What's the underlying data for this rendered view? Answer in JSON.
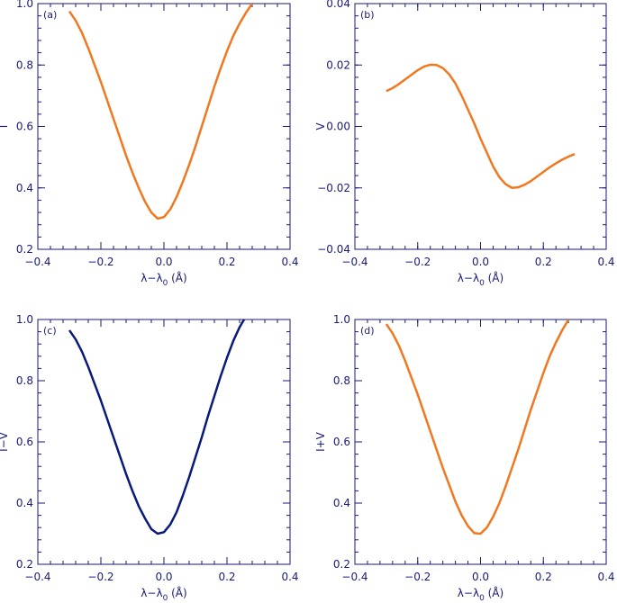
{
  "chart_data": [
    {
      "type": "line",
      "panel_label": "(a)",
      "ylabel": "I",
      "xlabel_main": "λ−λ",
      "xlabel_sub": "0",
      "xlabel_unit": " (Å)",
      "xlim": [
        -0.4,
        0.4
      ],
      "ylim": [
        0.2,
        1.0
      ],
      "xticks": [
        -0.4,
        -0.2,
        0.0,
        0.2,
        0.4
      ],
      "xtick_labels": [
        "−0.4",
        "−0.2",
        "0.0",
        "0.2",
        "0.4"
      ],
      "yticks": [
        0.2,
        0.4,
        0.6,
        0.8,
        1.0
      ],
      "ytick_labels": [
        "0.2",
        "0.4",
        "0.6",
        "0.8",
        "1.0"
      ],
      "color": "#f07820",
      "series": [
        {
          "x": [
            -0.3,
            -0.28,
            -0.26,
            -0.24,
            -0.22,
            -0.2,
            -0.18,
            -0.16,
            -0.14,
            -0.12,
            -0.1,
            -0.08,
            -0.06,
            -0.04,
            -0.02,
            0.0,
            0.02,
            0.04,
            0.06,
            0.08,
            0.1,
            0.12,
            0.14,
            0.16,
            0.18,
            0.2,
            0.22,
            0.24,
            0.26,
            0.28
          ],
          "y": [
            0.975,
            0.945,
            0.905,
            0.855,
            0.8,
            0.745,
            0.685,
            0.625,
            0.565,
            0.505,
            0.45,
            0.4,
            0.355,
            0.32,
            0.3,
            0.305,
            0.33,
            0.37,
            0.42,
            0.475,
            0.535,
            0.6,
            0.665,
            0.73,
            0.79,
            0.845,
            0.895,
            0.935,
            0.97,
            1.0
          ]
        }
      ]
    },
    {
      "type": "line",
      "panel_label": "(b)",
      "ylabel": "V",
      "xlabel_main": "λ−λ",
      "xlabel_sub": "0",
      "xlabel_unit": " (Å)",
      "xlim": [
        -0.4,
        0.4
      ],
      "ylim": [
        -0.04,
        0.04
      ],
      "xticks": [
        -0.4,
        -0.2,
        0.0,
        0.2,
        0.4
      ],
      "xtick_labels": [
        "−0.4",
        "−0.2",
        "0.0",
        "0.2",
        "0.4"
      ],
      "yticks": [
        -0.04,
        -0.02,
        0.0,
        0.02,
        0.04
      ],
      "ytick_labels": [
        "−0.04",
        "−0.02",
        "0.00",
        "0.02",
        "0.04"
      ],
      "color": "#f07820",
      "series": [
        {
          "x": [
            -0.3,
            -0.28,
            -0.26,
            -0.24,
            -0.22,
            -0.2,
            -0.18,
            -0.16,
            -0.14,
            -0.12,
            -0.1,
            -0.08,
            -0.06,
            -0.04,
            -0.02,
            0.0,
            0.02,
            0.04,
            0.06,
            0.08,
            0.1,
            0.12,
            0.14,
            0.16,
            0.18,
            0.2,
            0.22,
            0.24,
            0.26,
            0.28,
            0.3
          ],
          "y": [
            0.0115,
            0.0125,
            0.0138,
            0.0153,
            0.0168,
            0.0183,
            0.0195,
            0.0201,
            0.02,
            0.019,
            0.017,
            0.014,
            0.01,
            0.0055,
            0.001,
            -0.004,
            -0.0085,
            -0.013,
            -0.0165,
            -0.0188,
            -0.02,
            -0.0198,
            -0.019,
            -0.0178,
            -0.0163,
            -0.0148,
            -0.0133,
            -0.012,
            -0.0108,
            -0.0098,
            -0.009
          ]
        }
      ]
    },
    {
      "type": "line",
      "panel_label": "(c)",
      "ylabel": "I−V",
      "xlabel_main": "λ−λ",
      "xlabel_sub": "0",
      "xlabel_unit": " (Å)",
      "xlim": [
        -0.4,
        0.4
      ],
      "ylim": [
        0.2,
        1.0
      ],
      "xticks": [
        -0.4,
        -0.2,
        0.0,
        0.2,
        0.4
      ],
      "xtick_labels": [
        "−0.4",
        "−0.2",
        "0.0",
        "0.2",
        "0.4"
      ],
      "yticks": [
        0.2,
        0.4,
        0.6,
        0.8,
        1.0
      ],
      "ytick_labels": [
        "0.2",
        "0.4",
        "0.6",
        "0.8",
        "1.0"
      ],
      "color": "#0a1a7a",
      "series": [
        {
          "x": [
            -0.3,
            -0.28,
            -0.26,
            -0.24,
            -0.22,
            -0.2,
            -0.18,
            -0.16,
            -0.14,
            -0.12,
            -0.1,
            -0.08,
            -0.06,
            -0.04,
            -0.02,
            0.0,
            0.02,
            0.04,
            0.06,
            0.08,
            0.1,
            0.12,
            0.14,
            0.16,
            0.18,
            0.2,
            0.22,
            0.24,
            0.26
          ],
          "y": [
            0.965,
            0.935,
            0.895,
            0.845,
            0.79,
            0.735,
            0.675,
            0.615,
            0.555,
            0.495,
            0.44,
            0.39,
            0.35,
            0.315,
            0.3,
            0.305,
            0.33,
            0.37,
            0.425,
            0.485,
            0.55,
            0.615,
            0.685,
            0.75,
            0.815,
            0.875,
            0.93,
            0.975,
            1.01
          ]
        }
      ]
    },
    {
      "type": "line",
      "panel_label": "(d)",
      "ylabel": "I+V",
      "xlabel_main": "λ−λ",
      "xlabel_sub": "0",
      "xlabel_unit": " (Å)",
      "xlim": [
        -0.4,
        0.4
      ],
      "ylim": [
        0.2,
        1.0
      ],
      "xticks": [
        -0.4,
        -0.2,
        0.0,
        0.2,
        0.4
      ],
      "xtick_labels": [
        "−0.4",
        "−0.2",
        "0.0",
        "0.2",
        "0.4"
      ],
      "yticks": [
        0.2,
        0.4,
        0.6,
        0.8,
        1.0
      ],
      "ytick_labels": [
        "0.2",
        "0.4",
        "0.6",
        "0.8",
        "1.0"
      ],
      "color": "#f07820",
      "series": [
        {
          "x": [
            -0.3,
            -0.28,
            -0.26,
            -0.24,
            -0.22,
            -0.2,
            -0.18,
            -0.16,
            -0.14,
            -0.12,
            -0.1,
            -0.08,
            -0.06,
            -0.04,
            -0.02,
            0.0,
            0.02,
            0.04,
            0.06,
            0.08,
            0.1,
            0.12,
            0.14,
            0.16,
            0.18,
            0.2,
            0.22,
            0.24,
            0.26,
            0.28
          ],
          "y": [
            0.985,
            0.955,
            0.915,
            0.865,
            0.81,
            0.755,
            0.695,
            0.635,
            0.575,
            0.515,
            0.46,
            0.405,
            0.36,
            0.325,
            0.302,
            0.3,
            0.32,
            0.355,
            0.4,
            0.455,
            0.515,
            0.575,
            0.64,
            0.705,
            0.765,
            0.825,
            0.88,
            0.925,
            0.965,
            1.0
          ]
        }
      ]
    }
  ]
}
